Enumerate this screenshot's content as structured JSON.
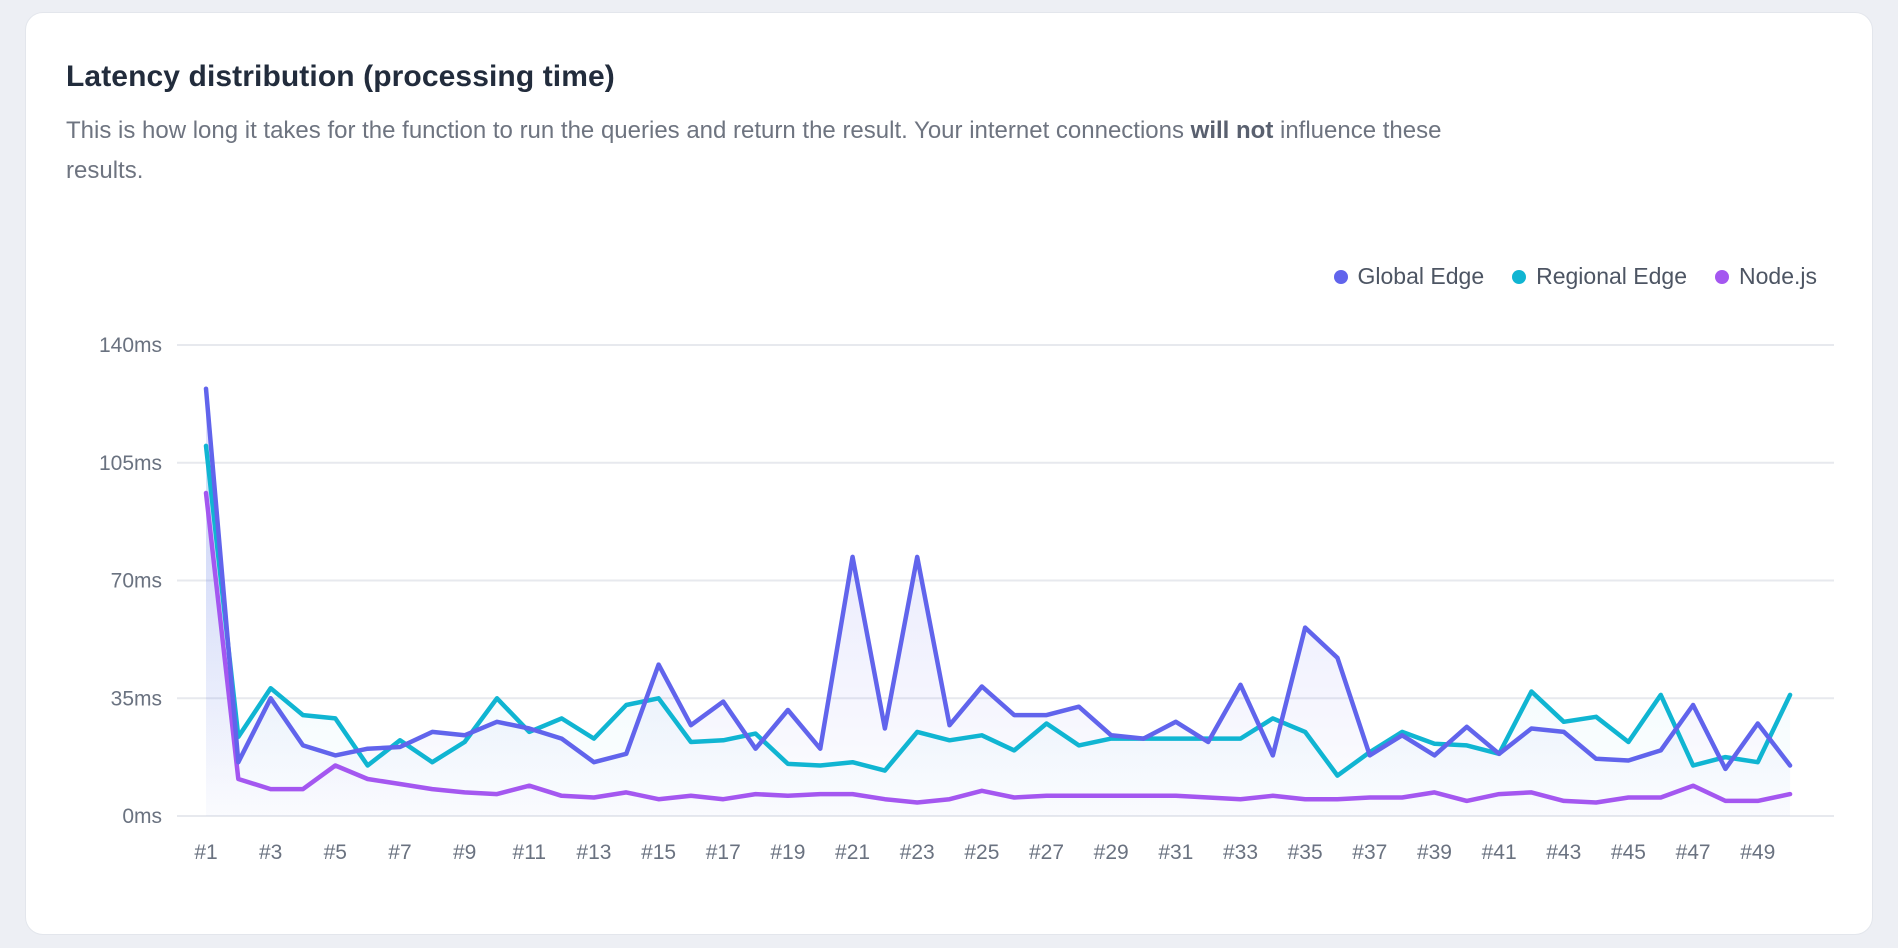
{
  "card": {
    "subtitle": {
      "text1": "This is how long it takes for the function to run the queries and return the result. Your internet connections ",
      "bold": "will not",
      "text2": " influence these",
      "line2": "results."
    }
  },
  "chart_data": {
    "type": "line",
    "title": "Latency distribution (processing time)",
    "xlabel": "",
    "ylabel": "",
    "ylim": [
      0,
      140
    ],
    "y_ticks": [
      "0ms",
      "35ms",
      "70ms",
      "105ms",
      "140ms"
    ],
    "grid": "horizontal",
    "legend_position": "top-right",
    "tick_every": 2,
    "categories": [
      "#1",
      "#2",
      "#3",
      "#4",
      "#5",
      "#6",
      "#7",
      "#8",
      "#9",
      "#10",
      "#11",
      "#12",
      "#13",
      "#14",
      "#15",
      "#16",
      "#17",
      "#18",
      "#19",
      "#20",
      "#21",
      "#22",
      "#23",
      "#24",
      "#25",
      "#26",
      "#27",
      "#28",
      "#29",
      "#30",
      "#31",
      "#32",
      "#33",
      "#34",
      "#35",
      "#36",
      "#37",
      "#38",
      "#39",
      "#40",
      "#41",
      "#42",
      "#43",
      "#44",
      "#45",
      "#46",
      "#47",
      "#48",
      "#49",
      "#50"
    ],
    "series": [
      {
        "name": "Global Edge",
        "color": "#6164ec",
        "values": [
          127,
          16,
          35,
          21,
          18,
          20,
          20.5,
          25,
          24,
          28,
          26,
          23,
          16,
          18.5,
          45,
          27,
          34,
          20,
          31.5,
          20,
          77,
          26,
          77,
          27,
          38.5,
          30,
          30,
          32.5,
          24,
          23,
          28,
          22,
          39,
          18,
          56,
          47,
          18,
          24,
          18,
          26.5,
          18.5,
          26,
          25,
          17,
          16.5,
          19.5,
          33,
          14,
          27.5,
          15
        ]
      },
      {
        "name": "Regional Edge",
        "color": "#10b5d2",
        "values": [
          110,
          23.5,
          38,
          30,
          29,
          15,
          22.5,
          16,
          22,
          35,
          25,
          29,
          23,
          33,
          35,
          22,
          22.5,
          24.5,
          15.5,
          15,
          16,
          13.5,
          25,
          22.5,
          24,
          19.5,
          27.5,
          21,
          23,
          23,
          23,
          23,
          23,
          29,
          25,
          12,
          19,
          25,
          21.5,
          21,
          18.5,
          37,
          28,
          29.5,
          22,
          36,
          15,
          17.5,
          16,
          36
        ]
      },
      {
        "name": "Node.js",
        "color": "#a457f0",
        "values": [
          96,
          11,
          8,
          8,
          15,
          11,
          9.5,
          8,
          7,
          6.5,
          9,
          6,
          5.5,
          7,
          5,
          6,
          5,
          6.5,
          6,
          6.5,
          6.5,
          5,
          4,
          5,
          7.5,
          5.5,
          6,
          6,
          6,
          6,
          6,
          5.5,
          5,
          6,
          5,
          5,
          5.5,
          5.5,
          7,
          4.5,
          6.5,
          7,
          4.5,
          4,
          5.5,
          5.5,
          9,
          4.5,
          4.5,
          6.5
        ]
      }
    ]
  }
}
